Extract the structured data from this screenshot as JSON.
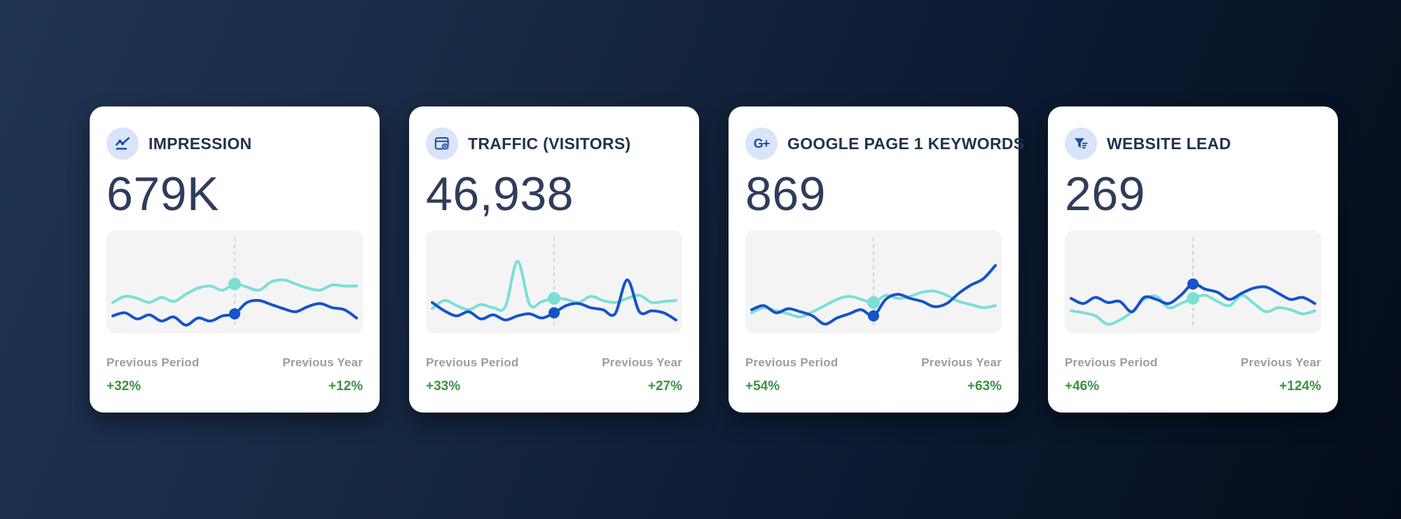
{
  "theme": {
    "page_bg_start": "#203454",
    "page_bg_end": "#050d1b",
    "card_bg": "#ffffff",
    "title_color": "#22334f",
    "value_color": "#2e3d5b",
    "label_color": "#9c9ca1",
    "positive_color": "#3e9142",
    "icon_bg": "#d9e4f8",
    "icon_color": "#1d4c9f",
    "chart_bg": "#f4f4f5",
    "teal_line": "#7bdfd4",
    "blue_line": "#1553c8",
    "dashed_line": "#c9c9cc"
  },
  "cards": [
    {
      "icon": "trend-line-icon",
      "title": "IMPRESSION",
      "value": "679K",
      "previous_period_label": "Previous Period",
      "previous_period_change": "+32%",
      "previous_year_label": "Previous Year",
      "previous_year_change": "+12%"
    },
    {
      "icon": "browser-eye-icon",
      "title": "TRAFFIC (VISITORS)",
      "value": "46,938",
      "previous_period_label": "Previous Period",
      "previous_period_change": "+33%",
      "previous_year_label": "Previous Year",
      "previous_year_change": "+27%"
    },
    {
      "icon": "google-plus-icon",
      "icon_text": "G+",
      "title": "GOOGLE PAGE 1 KEYWORDS",
      "value": "869",
      "previous_period_label": "Previous Period",
      "previous_period_change": "+54%",
      "previous_year_label": "Previous Year",
      "previous_year_change": "+63%"
    },
    {
      "icon": "funnel-icon",
      "title": "WEBSITE LEAD",
      "value": "269",
      "previous_period_label": "Previous Period",
      "previous_period_change": "+46%",
      "previous_year_label": "Previous Year",
      "previous_year_change": "+124%"
    }
  ],
  "chart_data": [
    {
      "type": "line",
      "title": "Impression sparkline",
      "note": "no axes shown; values are relative 0-100 estimates",
      "marker_index": 10,
      "series": [
        {
          "name": "previous",
          "color": "#7bdfd4",
          "values": [
            30,
            36,
            34,
            30,
            35,
            31,
            38,
            44,
            46,
            42,
            48,
            45,
            42,
            50,
            52,
            48,
            44,
            42,
            47,
            46,
            46
          ]
        },
        {
          "name": "current",
          "color": "#1553c8",
          "values": [
            17,
            20,
            14,
            18,
            12,
            16,
            8,
            15,
            12,
            17,
            19,
            30,
            32,
            28,
            24,
            21,
            26,
            29,
            25,
            23,
            15
          ]
        }
      ]
    },
    {
      "type": "line",
      "title": "Traffic (visitors) sparkline",
      "note": "no axes shown; values are relative 0-100 estimates",
      "marker_index": 10,
      "series": [
        {
          "name": "previous",
          "color": "#7bdfd4",
          "values": [
            24,
            32,
            27,
            23,
            28,
            25,
            26,
            70,
            28,
            31,
            34,
            33,
            30,
            36,
            32,
            30,
            34,
            37,
            30,
            31,
            32
          ]
        },
        {
          "name": "current",
          "color": "#1553c8",
          "values": [
            30,
            22,
            17,
            21,
            14,
            18,
            13,
            17,
            19,
            15,
            20,
            27,
            29,
            25,
            23,
            19,
            52,
            21,
            22,
            20,
            13
          ]
        }
      ]
    },
    {
      "type": "line",
      "title": "Google page 1 keywords sparkline",
      "note": "no axes shown; values are relative 0-100 estimates",
      "marker_index": 10,
      "series": [
        {
          "name": "previous",
          "color": "#7bdfd4",
          "values": [
            20,
            25,
            22,
            19,
            16,
            21,
            27,
            33,
            36,
            33,
            30,
            37,
            34,
            36,
            40,
            41,
            37,
            31,
            28,
            25,
            27
          ]
        },
        {
          "name": "current",
          "color": "#1553c8",
          "values": [
            23,
            27,
            20,
            24,
            21,
            17,
            9,
            15,
            19,
            23,
            17,
            33,
            38,
            34,
            31,
            26,
            29,
            39,
            47,
            53,
            66
          ]
        }
      ]
    },
    {
      "type": "line",
      "title": "Website lead sparkline",
      "note": "no axes shown; values are relative 0-100 estimates",
      "marker_index": 10,
      "series": [
        {
          "name": "previous",
          "color": "#7bdfd4",
          "values": [
            22,
            20,
            17,
            9,
            13,
            21,
            33,
            36,
            25,
            29,
            34,
            37,
            31,
            27,
            37,
            29,
            21,
            25,
            23,
            19,
            22
          ]
        },
        {
          "name": "current",
          "color": "#1553c8",
          "values": [
            34,
            29,
            35,
            30,
            31,
            21,
            35,
            33,
            29,
            37,
            48,
            43,
            40,
            33,
            39,
            44,
            45,
            39,
            33,
            35,
            29
          ]
        }
      ]
    }
  ]
}
